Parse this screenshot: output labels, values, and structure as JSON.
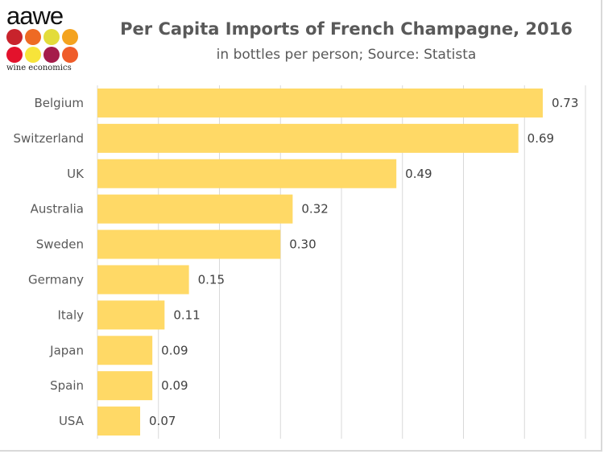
{
  "logo": {
    "text": "aawe",
    "subtitle": "wine economics",
    "dot_colors": [
      "#c8232c",
      "#ee6a24",
      "#e3dc3a",
      "#f4a31f",
      "#e3122c",
      "#f7e43a",
      "#a51c4a",
      "#ef5c2a"
    ]
  },
  "chart_data": {
    "type": "bar",
    "orientation": "horizontal",
    "title": "Per Capita Imports of French Champagne, 2016",
    "subtitle": "in bottles per person; Source: Statista",
    "categories": [
      "Belgium",
      "Switzerland",
      "UK",
      "Australia",
      "Sweden",
      "Germany",
      "Italy",
      "Japan",
      "Spain",
      "USA"
    ],
    "values": [
      0.73,
      0.69,
      0.49,
      0.32,
      0.3,
      0.15,
      0.11,
      0.09,
      0.09,
      0.07
    ],
    "labels": [
      "0.73",
      "0.69",
      "0.49",
      "0.32",
      "0.30",
      "0.15",
      "0.11",
      "0.09",
      "0.09",
      "0.07"
    ],
    "xlim": [
      0,
      0.8
    ],
    "grid": true,
    "grid_step": 0.1,
    "bar_color": "#ffd966",
    "grid_color": "#d9d9d9"
  }
}
